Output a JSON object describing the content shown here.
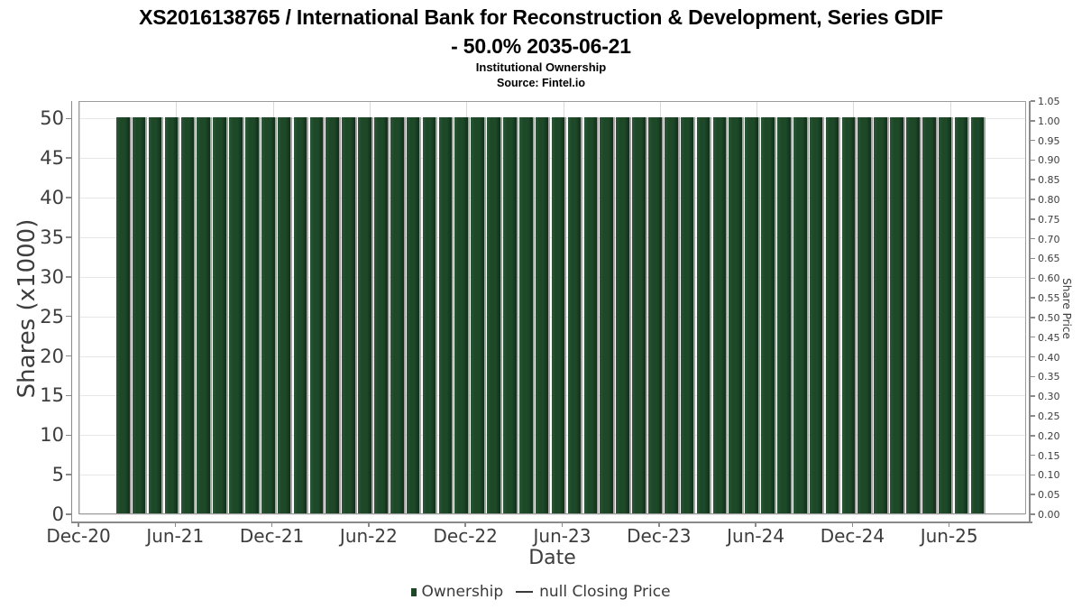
{
  "header": {
    "title_line1": "XS2016138765 / International Bank for Reconstruction & Development, Series GDIF",
    "title_line2": "- 50.0% 2035-06-21",
    "subtitle": "Institutional Ownership",
    "source": "Source: Fintel.io"
  },
  "chart_data": {
    "type": "bar",
    "title": "XS2016138765 / International Bank for Reconstruction & Development, Series GDIF - 50.0% 2035-06-21",
    "subtitle": "Institutional Ownership",
    "source_note": "Source: Fintel.io",
    "xlabel": "Date",
    "ylabel_left": "Shares (x1000)",
    "ylabel_right": "Share Price",
    "x_tick_labels": [
      "Dec-20",
      "Jun-21",
      "Dec-21",
      "Jun-22",
      "Dec-22",
      "Jun-23",
      "Dec-23",
      "Jun-24",
      "Dec-24",
      "Jun-25"
    ],
    "y_ticks_left": [
      0,
      5,
      10,
      15,
      20,
      25,
      30,
      35,
      40,
      45,
      50
    ],
    "y_ticks_right": [
      "0.00",
      "0.05",
      "0.10",
      "0.15",
      "0.20",
      "0.25",
      "0.30",
      "0.35",
      "0.40",
      "0.45",
      "0.50",
      "0.55",
      "0.60",
      "0.65",
      "0.70",
      "0.75",
      "0.80",
      "0.85",
      "0.90",
      "0.95",
      "1.00",
      "1.05"
    ],
    "ylim_left": [
      0,
      52.2
    ],
    "ylim_right": [
      0,
      1.05
    ],
    "grid": true,
    "legend_position": "bottom",
    "series": [
      {
        "name": "Ownership",
        "type": "bar",
        "color": "#1d4828",
        "values": [
          50,
          50,
          50,
          50,
          50,
          50,
          50,
          50,
          50,
          50,
          50,
          50,
          50,
          50,
          50,
          50,
          50,
          50,
          50,
          50,
          50,
          50,
          50,
          50,
          50,
          50,
          50,
          50,
          50,
          50,
          50,
          50,
          50,
          50,
          50,
          50,
          50,
          50,
          50,
          50,
          50,
          50,
          50,
          50,
          50,
          50,
          50,
          50,
          50,
          50,
          50,
          50,
          50,
          50
        ]
      },
      {
        "name": "null Closing Price",
        "type": "line",
        "color": "#3a3a3a",
        "values": []
      }
    ]
  },
  "legend": {
    "ownership": "Ownership",
    "closing_price": "null Closing Price"
  },
  "colors": {
    "bar": "#1d4828",
    "bar_shadow": "#a3a3a3",
    "grid_horizontal": "#e6e6e6",
    "grid_vertical": "#d9d9d9",
    "plot_border": "#9c9c9c",
    "spine": "#8a8a8a",
    "tick_text": "#3d3d3d",
    "title_text": "#000000"
  }
}
